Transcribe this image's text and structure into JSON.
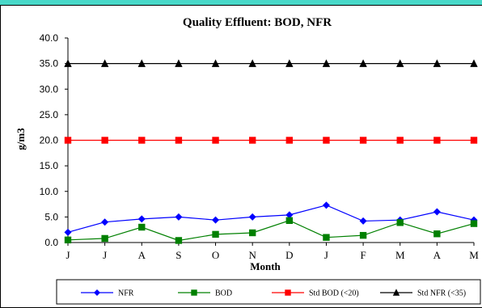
{
  "chart_data": {
    "type": "line",
    "title": "Quality  Effluent:  BOD, NFR",
    "xlabel": "Month",
    "ylabel": "g/m3",
    "ylim": [
      0,
      40
    ],
    "yticks": [
      "0.0",
      "5.0",
      "10.0",
      "15.0",
      "20.0",
      "25.0",
      "30.0",
      "35.0",
      "40.0"
    ],
    "categories": [
      "J",
      "J",
      "A",
      "S",
      "O",
      "N",
      "D",
      "J",
      "F",
      "M",
      "A",
      "M"
    ],
    "grid": false,
    "legend": "bottom",
    "series": [
      {
        "name": "NFR",
        "color": "#0000ff",
        "marker": "diamond",
        "values": [
          2.0,
          4.0,
          4.6,
          5.0,
          4.4,
          5.0,
          5.4,
          7.3,
          4.2,
          4.4,
          6.0,
          4.4
        ]
      },
      {
        "name": "BOD",
        "color": "#008000",
        "marker": "square",
        "values": [
          0.5,
          0.8,
          3.0,
          0.4,
          1.6,
          1.9,
          4.3,
          1.0,
          1.4,
          3.9,
          1.7,
          3.7
        ]
      },
      {
        "name": "Std BOD (<20)",
        "color": "#ff0000",
        "marker": "square",
        "values": [
          20,
          20,
          20,
          20,
          20,
          20,
          20,
          20,
          20,
          20,
          20,
          20
        ]
      },
      {
        "name": "Std NFR (<35)",
        "color": "#000000",
        "marker": "triangle",
        "values": [
          35,
          35,
          35,
          35,
          35,
          35,
          35,
          35,
          35,
          35,
          35,
          35
        ]
      }
    ]
  }
}
